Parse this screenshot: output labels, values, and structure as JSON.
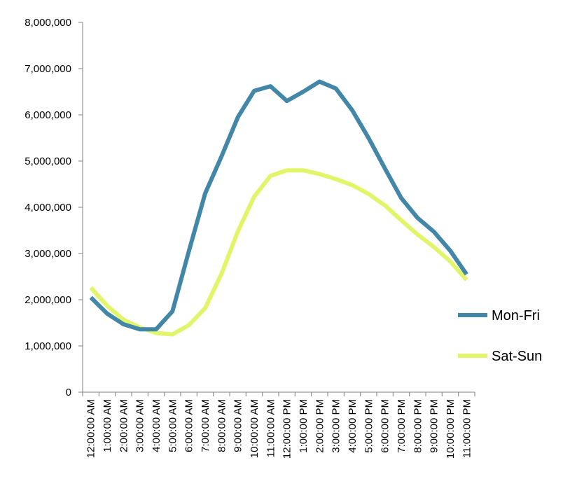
{
  "chart_data": {
    "type": "line",
    "title": "",
    "xlabel": "",
    "ylabel": "",
    "categories": [
      "12:00:00 AM",
      "1:00:00 AM",
      "2:00:00 AM",
      "3:00:00 AM",
      "4:00:00 AM",
      "5:00:00 AM",
      "6:00:00 AM",
      "7:00:00 AM",
      "8:00:00 AM",
      "9:00:00 AM",
      "10:00:00 AM",
      "11:00:00 AM",
      "12:00:00 PM",
      "1:00:00 PM",
      "2:00:00 PM",
      "3:00:00 PM",
      "4:00:00 PM",
      "5:00:00 PM",
      "6:00:00 PM",
      "7:00:00 PM",
      "8:00:00 PM",
      "9:00:00 PM",
      "10:00:00 PM",
      "11:00:00 PM"
    ],
    "ylim": [
      0,
      8000000
    ],
    "yticks": [
      0,
      1000000,
      2000000,
      3000000,
      4000000,
      5000000,
      6000000,
      7000000,
      8000000
    ],
    "ytick_labels": [
      "0",
      "1,000,000",
      "2,000,000",
      "3,000,000",
      "4,000,000",
      "5,000,000",
      "6,000,000",
      "7,000,000",
      "8,000,000"
    ],
    "grid": false,
    "legend_position": "right",
    "series": [
      {
        "name": "Mon-Fri",
        "color": "#4286a8",
        "values": [
          2050000,
          1700000,
          1470000,
          1360000,
          1360000,
          1750000,
          3050000,
          4300000,
          5100000,
          5950000,
          6520000,
          6620000,
          6300000,
          6500000,
          6720000,
          6570000,
          6100000,
          5500000,
          4840000,
          4200000,
          3770000,
          3470000,
          3060000,
          2550000
        ]
      },
      {
        "name": "Sat-Sun",
        "color": "#e2f56a",
        "values": [
          2260000,
          1870000,
          1570000,
          1400000,
          1280000,
          1250000,
          1450000,
          1820000,
          2560000,
          3480000,
          4230000,
          4680000,
          4800000,
          4800000,
          4720000,
          4610000,
          4480000,
          4290000,
          4040000,
          3720000,
          3410000,
          3140000,
          2830000,
          2430000
        ]
      }
    ]
  }
}
